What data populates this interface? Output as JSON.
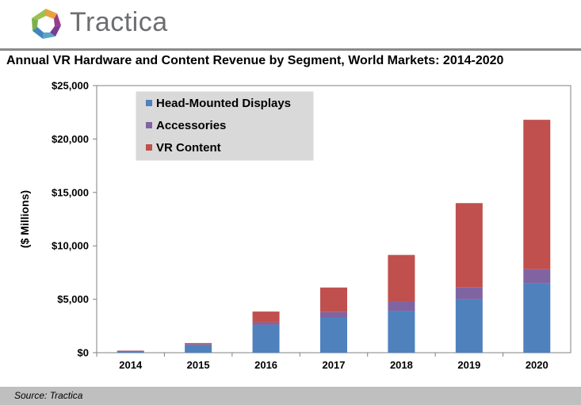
{
  "brand": {
    "name": "Tractica"
  },
  "colors": {
    "hmd": "#4f81bd",
    "accessories": "#8064a2",
    "content": "#c0504d"
  },
  "chart_data": {
    "type": "bar",
    "stacked": true,
    "title": "Annual VR Hardware and Content Revenue by Segment, World Markets: 2014-2020",
    "ylabel": "($ Millions)",
    "xlabel": "",
    "categories": [
      "2014",
      "2015",
      "2016",
      "2017",
      "2018",
      "2019",
      "2020"
    ],
    "ylim": [
      0,
      25000
    ],
    "yticks": [
      0,
      5000,
      10000,
      15000,
      20000,
      25000
    ],
    "ytick_labels": [
      "$0",
      "$5,000",
      "$10,000",
      "$15,000",
      "$20,000",
      "$25,000"
    ],
    "legend_position": "top-left",
    "grid": false,
    "series": [
      {
        "name": "Head-Mounted Displays",
        "color": "#4f81bd",
        "values": [
          150,
          700,
          2600,
          3300,
          3900,
          5000,
          6500
        ]
      },
      {
        "name": "Accessories",
        "color": "#8064a2",
        "values": [
          30,
          100,
          250,
          500,
          850,
          1100,
          1300
        ]
      },
      {
        "name": "VR Content",
        "color": "#c0504d",
        "values": [
          20,
          100,
          1000,
          2300,
          4400,
          7900,
          14000
        ]
      }
    ]
  },
  "source": "Source: Tractica"
}
